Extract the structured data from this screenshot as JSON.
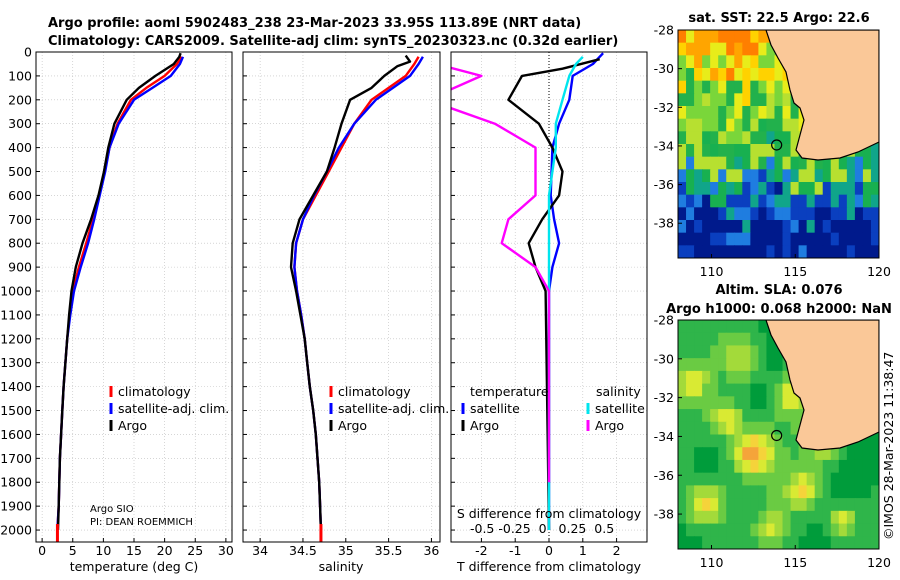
{
  "header": {
    "title1": "Argo profile: aoml 5902483_238 23-Mar-2023 33.95S 113.89E (NRT data)",
    "title2": "Climatology: CARS2009. Satellite-adj clim: synTS_20230323.nc (0.32d earlier)"
  },
  "colors": {
    "climatology": "#ff0000",
    "satellite": "#0000ff",
    "argo": "#000000",
    "s_satellite": "#00e5ee",
    "s_argo": "#ff00ff"
  },
  "chart_data": [
    {
      "type": "line",
      "panel": "temperature",
      "xlabel": "temperature (deg C)",
      "xlim": [
        -1,
        31
      ],
      "xticks": [
        0,
        5,
        10,
        15,
        20,
        25,
        30
      ],
      "ylim": [
        2050,
        0
      ],
      "yticks": [
        0,
        100,
        200,
        300,
        400,
        500,
        600,
        700,
        800,
        900,
        1000,
        1100,
        1200,
        1300,
        1400,
        1500,
        1600,
        1700,
        1800,
        1900,
        2000
      ],
      "legend": [
        "climatology",
        "satellite-adj. clim.",
        "Argo"
      ],
      "note1": "Argo SIO",
      "note2": "PI: DEAN ROEMMICH",
      "series": [
        {
          "name": "climatology",
          "points": [
            [
              22.8,
              20
            ],
            [
              22,
              50
            ],
            [
              20,
              100
            ],
            [
              17,
              150
            ],
            [
              14.5,
              200
            ],
            [
              12.3,
              300
            ],
            [
              11,
              400
            ],
            [
              10.2,
              500
            ],
            [
              9.3,
              600
            ],
            [
              8.3,
              700
            ],
            [
              7.2,
              800
            ],
            [
              6,
              900
            ],
            [
              5,
              1000
            ],
            [
              4.5,
              1100
            ],
            [
              4.1,
              1200
            ],
            [
              3.8,
              1300
            ],
            [
              3.5,
              1400
            ],
            [
              3.3,
              1500
            ],
            [
              3.1,
              1600
            ],
            [
              2.9,
              1700
            ],
            [
              2.8,
              1800
            ],
            [
              2.7,
              1900
            ],
            [
              2.5,
              2000
            ]
          ]
        },
        {
          "name": "satellite-adj. clim.",
          "points": [
            [
              23,
              20
            ],
            [
              22.5,
              50
            ],
            [
              21,
              100
            ],
            [
              18,
              150
            ],
            [
              15,
              200
            ],
            [
              12.5,
              300
            ],
            [
              11,
              400
            ],
            [
              10.3,
              500
            ],
            [
              9.4,
              600
            ],
            [
              8.5,
              700
            ],
            [
              7.5,
              800
            ],
            [
              6.3,
              900
            ],
            [
              5.2,
              1000
            ],
            [
              4.6,
              1100
            ],
            [
              4.1,
              1200
            ],
            [
              3.8,
              1300
            ],
            [
              3.5,
              1400
            ],
            [
              3.3,
              1500
            ],
            [
              3.1,
              1600
            ],
            [
              2.9,
              1700
            ],
            [
              2.8,
              1800
            ],
            [
              2.7,
              1900
            ],
            [
              2.5,
              2000
            ]
          ]
        },
        {
          "name": "Argo",
          "points": [
            [
              22.6,
              5
            ],
            [
              22.4,
              20
            ],
            [
              21.5,
              50
            ],
            [
              18.5,
              100
            ],
            [
              15.8,
              150
            ],
            [
              13.8,
              200
            ],
            [
              11.8,
              300
            ],
            [
              10.8,
              400
            ],
            [
              10.1,
              500
            ],
            [
              9.2,
              600
            ],
            [
              8,
              700
            ],
            [
              6.6,
              800
            ],
            [
              5.5,
              900
            ],
            [
              4.8,
              1000
            ],
            [
              4.4,
              1100
            ],
            [
              4.1,
              1200
            ],
            [
              3.8,
              1300
            ],
            [
              3.5,
              1400
            ],
            [
              3.3,
              1500
            ],
            [
              3.1,
              1600
            ],
            [
              2.9,
              1700
            ],
            [
              2.8,
              1800
            ],
            [
              2.7,
              1900
            ],
            [
              2.6,
              2000
            ]
          ]
        }
      ]
    },
    {
      "type": "line",
      "panel": "salinity",
      "xlabel": "salinity",
      "xlim": [
        33.8,
        36.1
      ],
      "xticks": [
        34,
        34.5,
        35,
        35.5,
        36
      ],
      "xticklabels": [
        "34",
        "34.5",
        "35",
        "35.5",
        "36"
      ],
      "ylim": [
        2050,
        0
      ],
      "legend": [
        "climatology",
        "satellite-adj. clim.",
        "Argo"
      ],
      "series": [
        {
          "name": "climatology",
          "points": [
            [
              35.85,
              20
            ],
            [
              35.8,
              50
            ],
            [
              35.7,
              100
            ],
            [
              35.5,
              150
            ],
            [
              35.3,
              200
            ],
            [
              35.1,
              300
            ],
            [
              34.95,
              400
            ],
            [
              34.8,
              500
            ],
            [
              34.65,
              600
            ],
            [
              34.5,
              700
            ],
            [
              34.42,
              800
            ],
            [
              34.4,
              900
            ],
            [
              34.43,
              1000
            ],
            [
              34.48,
              1100
            ],
            [
              34.52,
              1200
            ],
            [
              34.55,
              1300
            ],
            [
              34.58,
              1400
            ],
            [
              34.62,
              1500
            ],
            [
              34.65,
              1600
            ],
            [
              34.67,
              1700
            ],
            [
              34.69,
              1800
            ],
            [
              34.7,
              1900
            ],
            [
              34.71,
              2000
            ]
          ]
        },
        {
          "name": "satellite-adj. clim.",
          "points": [
            [
              35.9,
              20
            ],
            [
              35.85,
              50
            ],
            [
              35.75,
              100
            ],
            [
              35.55,
              150
            ],
            [
              35.35,
              200
            ],
            [
              35.1,
              300
            ],
            [
              34.92,
              400
            ],
            [
              34.78,
              500
            ],
            [
              34.63,
              600
            ],
            [
              34.5,
              700
            ],
            [
              34.42,
              800
            ],
            [
              34.4,
              900
            ],
            [
              34.43,
              1000
            ],
            [
              34.48,
              1100
            ],
            [
              34.52,
              1200
            ],
            [
              34.55,
              1300
            ],
            [
              34.58,
              1400
            ],
            [
              34.62,
              1500
            ],
            [
              34.65,
              1600
            ],
            [
              34.67,
              1700
            ],
            [
              34.69,
              1800
            ],
            [
              34.7,
              1900
            ],
            [
              34.71,
              2000
            ]
          ]
        },
        {
          "name": "Argo",
          "points": [
            [
              35.7,
              15
            ],
            [
              35.75,
              40
            ],
            [
              35.6,
              60
            ],
            [
              35.45,
              100
            ],
            [
              35.3,
              150
            ],
            [
              35.05,
              200
            ],
            [
              34.95,
              300
            ],
            [
              34.87,
              400
            ],
            [
              34.78,
              500
            ],
            [
              34.62,
              600
            ],
            [
              34.46,
              700
            ],
            [
              34.38,
              800
            ],
            [
              34.36,
              900
            ],
            [
              34.42,
              1000
            ],
            [
              34.47,
              1100
            ],
            [
              34.52,
              1200
            ],
            [
              34.55,
              1300
            ],
            [
              34.58,
              1400
            ],
            [
              34.62,
              1500
            ],
            [
              34.65,
              1600
            ],
            [
              34.67,
              1700
            ],
            [
              34.69,
              1800
            ],
            [
              34.7,
              1900
            ],
            [
              34.71,
              2000
            ]
          ]
        }
      ]
    },
    {
      "type": "line",
      "panel": "difference",
      "xlabel": "T difference from climatology",
      "xlabel_top": "S difference from climatology",
      "xlim": [
        -2.9,
        2.9
      ],
      "xticks": [
        -2,
        -1,
        0,
        1,
        2
      ],
      "s_ticks_text": "-0.5 -0.25  0   0.25  0.5",
      "ylim": [
        2050,
        0
      ],
      "legend_temperature_head": "temperature",
      "legend_salinity_head": "salinity",
      "legend_entries": [
        "satellite",
        "Argo",
        "satellite",
        "Argo"
      ],
      "series": [
        {
          "name": "T satellite",
          "points": [
            [
              1.6,
              5
            ],
            [
              1.3,
              50
            ],
            [
              0.7,
              100
            ],
            [
              0.6,
              200
            ],
            [
              0.3,
              300
            ],
            [
              0.1,
              400
            ],
            [
              0.05,
              600
            ],
            [
              0.15,
              700
            ],
            [
              0.3,
              800
            ],
            [
              0.1,
              900
            ],
            [
              0,
              1000
            ],
            [
              0,
              2000
            ]
          ]
        },
        {
          "name": "T Argo",
          "points": [
            [
              1.5,
              30
            ],
            [
              0.4,
              70
            ],
            [
              -0.8,
              100
            ],
            [
              -1.2,
              200
            ],
            [
              -0.3,
              300
            ],
            [
              0.1,
              400
            ],
            [
              0.4,
              500
            ],
            [
              0.3,
              600
            ],
            [
              -0.2,
              700
            ],
            [
              -0.6,
              800
            ],
            [
              -0.4,
              900
            ],
            [
              -0.1,
              1000
            ],
            [
              0,
              2000
            ]
          ]
        },
        {
          "name": "S satellite",
          "points": [
            [
              0.25,
              20
            ],
            [
              0.2,
              50
            ],
            [
              0.15,
              100
            ],
            [
              0.1,
              200
            ],
            [
              0.05,
              300
            ],
            [
              0.05,
              400
            ],
            [
              0,
              600
            ],
            [
              0,
              1000
            ],
            [
              0,
              2000
            ]
          ]
        },
        {
          "name": "S Argo",
          "points": [
            [
              -0.8,
              5
            ],
            [
              -0.9,
              40
            ],
            [
              -0.5,
              100
            ],
            [
              -0.9,
              200
            ],
            [
              -0.4,
              300
            ],
            [
              -0.1,
              400
            ],
            [
              -0.1,
              600
            ],
            [
              -0.3,
              700
            ],
            [
              -0.35,
              800
            ],
            [
              -0.1,
              900
            ],
            [
              0,
              1000
            ],
            [
              0,
              1800
            ]
          ]
        }
      ]
    },
    {
      "type": "heatmap",
      "panel": "sst_map",
      "title": "sat. SST: 22.5 Argo: 22.6",
      "xlim": [
        108,
        120
      ],
      "ylim": [
        -39.8,
        -28
      ],
      "xticks": [
        110,
        115,
        120
      ],
      "yticks": [
        -28,
        -30,
        -32,
        -34,
        -36,
        -38
      ],
      "argo_position": [
        113.89,
        -33.95
      ]
    },
    {
      "type": "heatmap",
      "panel": "sla_map",
      "title1": "Altim. SLA: 0.076",
      "title2": "Argo h1000: 0.068 h2000: NaN",
      "xlim": [
        108,
        120
      ],
      "ylim": [
        -39.8,
        -28
      ],
      "xticks": [
        110,
        115,
        120
      ],
      "yticks": [
        -28,
        -30,
        -32,
        -34,
        -36,
        -38
      ],
      "argo_position": [
        113.89,
        -33.95
      ]
    }
  ],
  "watermark": "©IMOS 28-Mar-2023 11:38:47"
}
